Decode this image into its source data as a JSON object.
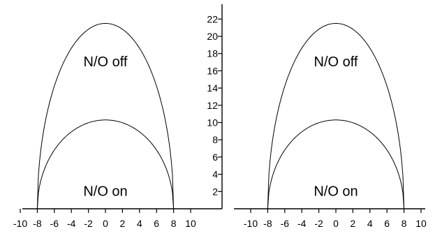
{
  "chart_data": [
    {
      "type": "line",
      "panel": "left",
      "xlabel": "",
      "ylabel": "",
      "xlim": [
        -10,
        10
      ],
      "ylim": [
        0,
        23
      ],
      "x_ticks": [
        -10,
        -8,
        -6,
        -4,
        -2,
        0,
        2,
        4,
        6,
        8,
        10
      ],
      "y_ticks": [
        2,
        4,
        6,
        8,
        10,
        12,
        14,
        16,
        18,
        20,
        22
      ],
      "series": [
        {
          "shape": "semi-ellipse",
          "x_min": -8,
          "x_max": 8,
          "peak_x": 0,
          "peak_y": 21.5
        },
        {
          "shape": "semi-ellipse",
          "x_min": -8,
          "x_max": 8,
          "peak_x": 0,
          "peak_y": 10.3
        }
      ],
      "annotations": [
        {
          "text": "N/O off",
          "x": 0,
          "y": 16.5
        },
        {
          "text": "N/O on",
          "x": 0,
          "y": 1.5
        }
      ]
    },
    {
      "type": "line",
      "panel": "right",
      "xlabel": "",
      "ylabel": "",
      "xlim": [
        -10,
        10
      ],
      "ylim": [
        0,
        23
      ],
      "x_ticks": [
        -10,
        -8,
        -6,
        -4,
        -2,
        0,
        2,
        4,
        6,
        8,
        10
      ],
      "series": [
        {
          "shape": "semi-ellipse",
          "x_min": -8,
          "x_max": 8,
          "peak_x": 0,
          "peak_y": 21.5
        },
        {
          "shape": "semi-ellipse",
          "x_min": -8,
          "x_max": 8,
          "peak_x": 0,
          "peak_y": 10.3
        }
      ],
      "annotations": [
        {
          "text": "N/O off",
          "x": 0,
          "y": 16.5
        },
        {
          "text": "N/O on",
          "x": 0,
          "y": 1.5
        }
      ]
    }
  ]
}
